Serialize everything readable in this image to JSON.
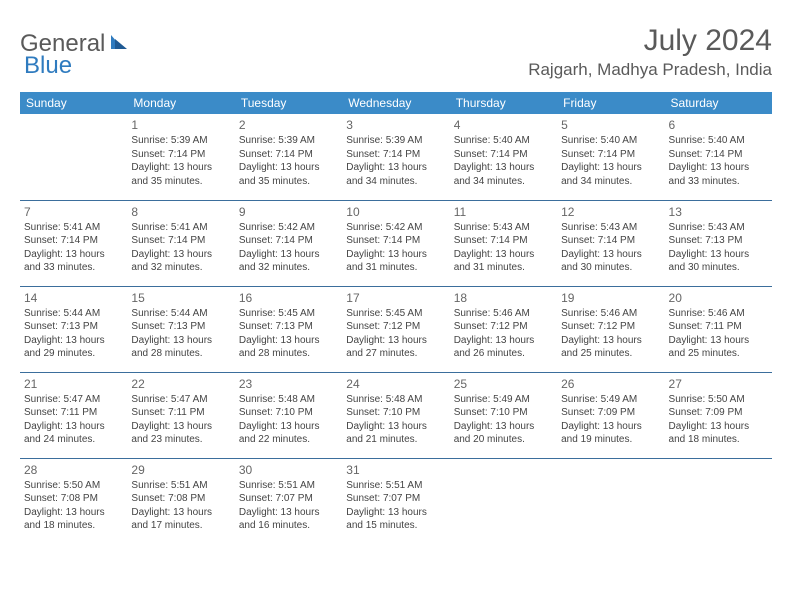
{
  "logo": {
    "text1": "General",
    "text2": "Blue"
  },
  "title": "July 2024",
  "location": "Rajgarh, Madhya Pradesh, India",
  "colors": {
    "header_bg": "#3b8bc8",
    "header_text": "#ffffff",
    "row_border": "#3b6e9c",
    "title_color": "#5a5a5a",
    "logo_blue": "#2f7bbf"
  },
  "fonts": {
    "title_size": 30,
    "location_size": 17,
    "dayheader_size": 12,
    "cell_size": 10
  },
  "day_headers": [
    "Sunday",
    "Monday",
    "Tuesday",
    "Wednesday",
    "Thursday",
    "Friday",
    "Saturday"
  ],
  "weeks": [
    [
      null,
      {
        "n": "1",
        "sunrise": "5:39 AM",
        "sunset": "7:14 PM",
        "daylight": "13 hours and 35 minutes."
      },
      {
        "n": "2",
        "sunrise": "5:39 AM",
        "sunset": "7:14 PM",
        "daylight": "13 hours and 35 minutes."
      },
      {
        "n": "3",
        "sunrise": "5:39 AM",
        "sunset": "7:14 PM",
        "daylight": "13 hours and 34 minutes."
      },
      {
        "n": "4",
        "sunrise": "5:40 AM",
        "sunset": "7:14 PM",
        "daylight": "13 hours and 34 minutes."
      },
      {
        "n": "5",
        "sunrise": "5:40 AM",
        "sunset": "7:14 PM",
        "daylight": "13 hours and 34 minutes."
      },
      {
        "n": "6",
        "sunrise": "5:40 AM",
        "sunset": "7:14 PM",
        "daylight": "13 hours and 33 minutes."
      }
    ],
    [
      {
        "n": "7",
        "sunrise": "5:41 AM",
        "sunset": "7:14 PM",
        "daylight": "13 hours and 33 minutes."
      },
      {
        "n": "8",
        "sunrise": "5:41 AM",
        "sunset": "7:14 PM",
        "daylight": "13 hours and 32 minutes."
      },
      {
        "n": "9",
        "sunrise": "5:42 AM",
        "sunset": "7:14 PM",
        "daylight": "13 hours and 32 minutes."
      },
      {
        "n": "10",
        "sunrise": "5:42 AM",
        "sunset": "7:14 PM",
        "daylight": "13 hours and 31 minutes."
      },
      {
        "n": "11",
        "sunrise": "5:43 AM",
        "sunset": "7:14 PM",
        "daylight": "13 hours and 31 minutes."
      },
      {
        "n": "12",
        "sunrise": "5:43 AM",
        "sunset": "7:14 PM",
        "daylight": "13 hours and 30 minutes."
      },
      {
        "n": "13",
        "sunrise": "5:43 AM",
        "sunset": "7:13 PM",
        "daylight": "13 hours and 30 minutes."
      }
    ],
    [
      {
        "n": "14",
        "sunrise": "5:44 AM",
        "sunset": "7:13 PM",
        "daylight": "13 hours and 29 minutes."
      },
      {
        "n": "15",
        "sunrise": "5:44 AM",
        "sunset": "7:13 PM",
        "daylight": "13 hours and 28 minutes."
      },
      {
        "n": "16",
        "sunrise": "5:45 AM",
        "sunset": "7:13 PM",
        "daylight": "13 hours and 28 minutes."
      },
      {
        "n": "17",
        "sunrise": "5:45 AM",
        "sunset": "7:12 PM",
        "daylight": "13 hours and 27 minutes."
      },
      {
        "n": "18",
        "sunrise": "5:46 AM",
        "sunset": "7:12 PM",
        "daylight": "13 hours and 26 minutes."
      },
      {
        "n": "19",
        "sunrise": "5:46 AM",
        "sunset": "7:12 PM",
        "daylight": "13 hours and 25 minutes."
      },
      {
        "n": "20",
        "sunrise": "5:46 AM",
        "sunset": "7:11 PM",
        "daylight": "13 hours and 25 minutes."
      }
    ],
    [
      {
        "n": "21",
        "sunrise": "5:47 AM",
        "sunset": "7:11 PM",
        "daylight": "13 hours and 24 minutes."
      },
      {
        "n": "22",
        "sunrise": "5:47 AM",
        "sunset": "7:11 PM",
        "daylight": "13 hours and 23 minutes."
      },
      {
        "n": "23",
        "sunrise": "5:48 AM",
        "sunset": "7:10 PM",
        "daylight": "13 hours and 22 minutes."
      },
      {
        "n": "24",
        "sunrise": "5:48 AM",
        "sunset": "7:10 PM",
        "daylight": "13 hours and 21 minutes."
      },
      {
        "n": "25",
        "sunrise": "5:49 AM",
        "sunset": "7:10 PM",
        "daylight": "13 hours and 20 minutes."
      },
      {
        "n": "26",
        "sunrise": "5:49 AM",
        "sunset": "7:09 PM",
        "daylight": "13 hours and 19 minutes."
      },
      {
        "n": "27",
        "sunrise": "5:50 AM",
        "sunset": "7:09 PM",
        "daylight": "13 hours and 18 minutes."
      }
    ],
    [
      {
        "n": "28",
        "sunrise": "5:50 AM",
        "sunset": "7:08 PM",
        "daylight": "13 hours and 18 minutes."
      },
      {
        "n": "29",
        "sunrise": "5:51 AM",
        "sunset": "7:08 PM",
        "daylight": "13 hours and 17 minutes."
      },
      {
        "n": "30",
        "sunrise": "5:51 AM",
        "sunset": "7:07 PM",
        "daylight": "13 hours and 16 minutes."
      },
      {
        "n": "31",
        "sunrise": "5:51 AM",
        "sunset": "7:07 PM",
        "daylight": "13 hours and 15 minutes."
      },
      null,
      null,
      null
    ]
  ],
  "labels": {
    "sunrise": "Sunrise:",
    "sunset": "Sunset:",
    "daylight": "Daylight:"
  }
}
